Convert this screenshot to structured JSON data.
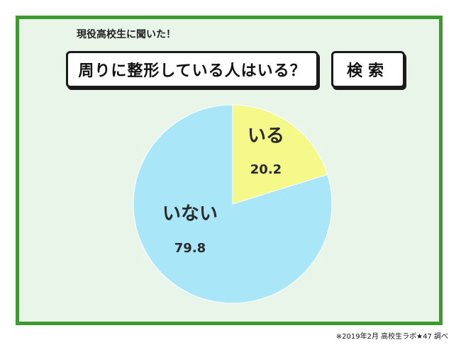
{
  "header": {
    "subtitle": "現役高校生に聞いた！",
    "title": "周りに整形している人はいる？",
    "search_label": "検索"
  },
  "chart_data": {
    "type": "pie",
    "slices": [
      {
        "label": "いる",
        "value": 20.2,
        "color": "#f4f98a"
      },
      {
        "label": "いない",
        "value": 79.8,
        "color": "#a9e7f8"
      }
    ]
  },
  "footnote": "※2019年2月 高校生ラボ★47 調べ"
}
